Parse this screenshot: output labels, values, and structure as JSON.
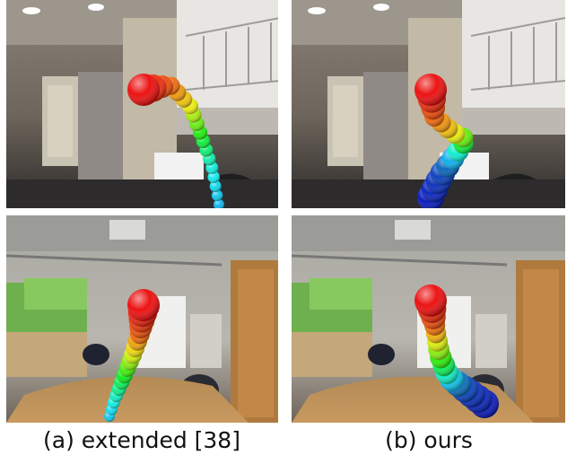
{
  "figure": {
    "panels": [
      {
        "caption": "(a) extended [38]"
      },
      {
        "caption": "(b) ours"
      }
    ]
  }
}
